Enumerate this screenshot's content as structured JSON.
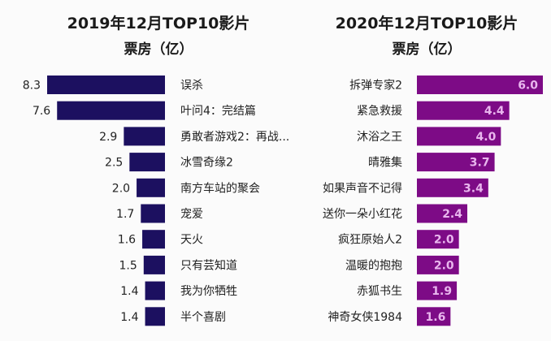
{
  "chart_data": [
    {
      "type": "bar",
      "orientation": "horizontal",
      "title": "2019年12月TOP10影片",
      "subtitle": "票房（亿）",
      "categories": [
        "误杀",
        "叶问4：完结篇",
        "勇敢者游戏2：再战...",
        "冰雪奇缘2",
        "南方车站的聚会",
        "宠爱",
        "天火",
        "只有芸知道",
        "我为你牺牲",
        "半个喜剧"
      ],
      "values": [
        8.3,
        7.6,
        2.9,
        2.5,
        2.0,
        1.7,
        1.6,
        1.5,
        1.4,
        1.4
      ],
      "value_labels": [
        "8.3",
        "7.6",
        "2.9",
        "2.5",
        "2.0",
        "1.7",
        "1.6",
        "1.5",
        "1.4",
        "1.4"
      ],
      "color": "#1c1060",
      "xlim": [
        0,
        8.3
      ]
    },
    {
      "type": "bar",
      "orientation": "horizontal",
      "title": "2020年12月TOP10影片",
      "subtitle": "票房（亿）",
      "categories": [
        "拆弹专家2",
        "紧急救援",
        "沐浴之王",
        "晴雅集",
        "如果声音不记得",
        "送你一朵小红花",
        "疯狂原始人2",
        "温暖的抱抱",
        "赤狐书生",
        "神奇女侠1984"
      ],
      "values": [
        6.0,
        4.4,
        4.0,
        3.7,
        3.4,
        2.4,
        2.0,
        2.0,
        1.9,
        1.6
      ],
      "value_labels": [
        "6.0",
        "4.4",
        "4.0",
        "3.7",
        "3.4",
        "2.4",
        "2.0",
        "2.0",
        "1.9",
        "1.6"
      ],
      "color": "#7d0b86",
      "label_color": "#e9b6ee",
      "xlim": [
        0,
        6.0
      ]
    }
  ]
}
